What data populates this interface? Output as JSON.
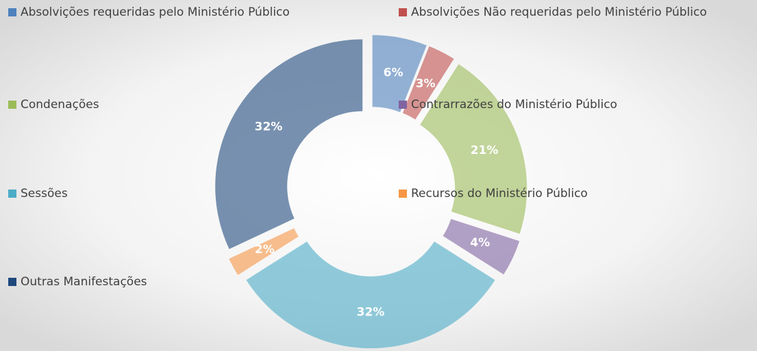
{
  "chart_data": {
    "type": "doughnut",
    "categories": [
      "Absolvições requeridas pelo Ministério Público",
      "Absolvições Não requeridas pelo Ministério Público",
      "Condenações",
      "Contrarrazões do Ministério Público",
      "Sessões",
      "Recursos do Ministério Público",
      "Outras Manifestações"
    ],
    "values": [
      6,
      3,
      21,
      4,
      32,
      2,
      32
    ],
    "value_labels": [
      "6%",
      "3%",
      "21%",
      "4%",
      "32%",
      "2%",
      "32%"
    ],
    "colors": [
      "#4f81bd",
      "#c0504d",
      "#9bbb59",
      "#8064a2",
      "#4bacc6",
      "#f79646",
      "#1f497d"
    ],
    "legend": "left"
  }
}
